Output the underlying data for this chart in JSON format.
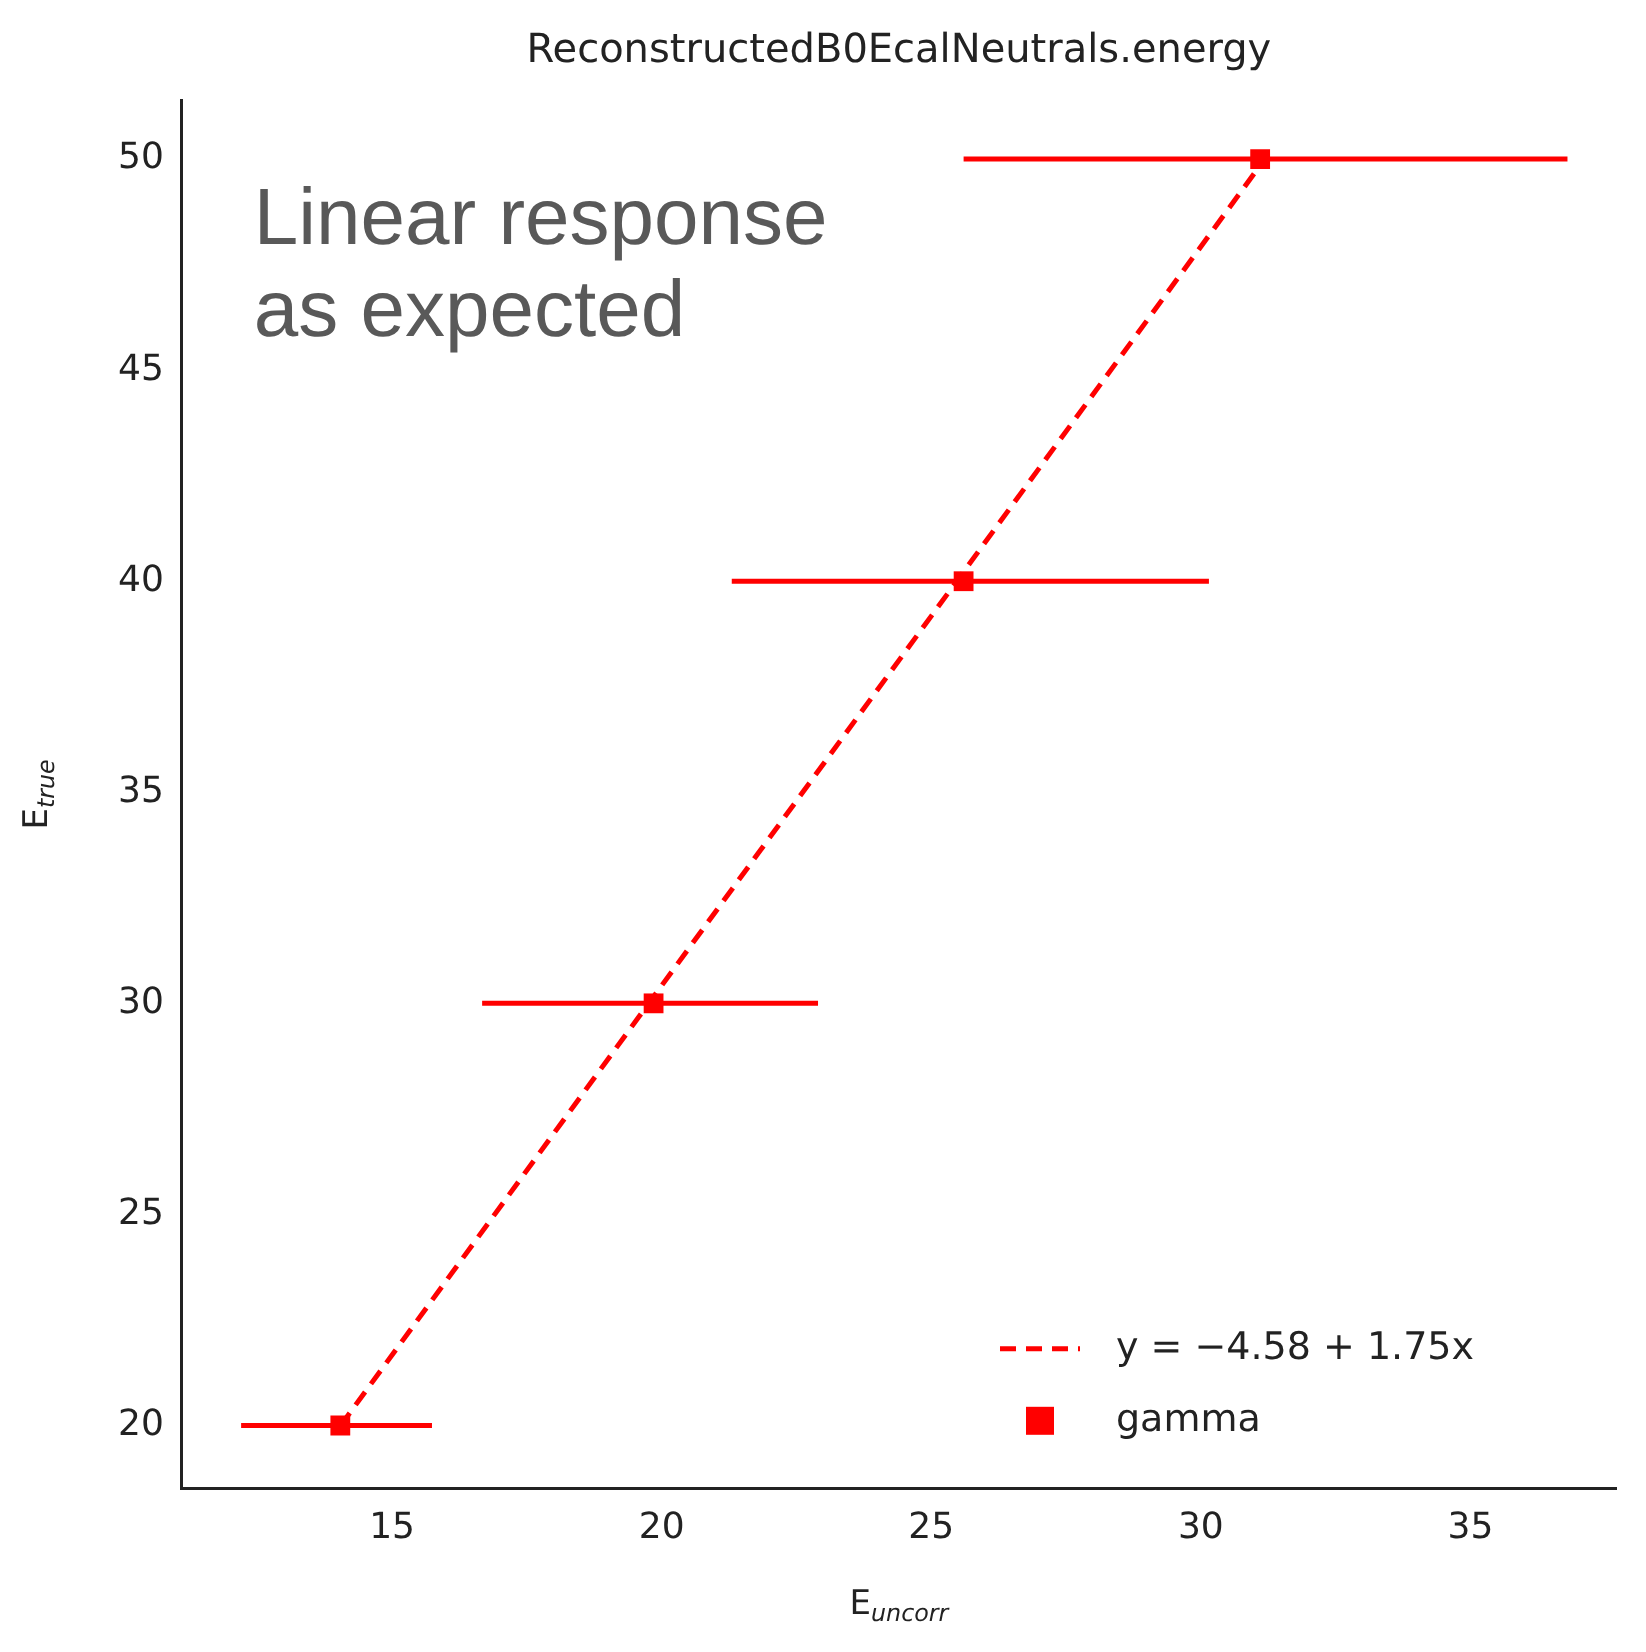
{
  "chart_data": {
    "type": "scatter",
    "title": "ReconstructedB0EcalNeutrals.energy",
    "xlabel": "E$_{uncorr}$",
    "ylabel": "E$_{true}$",
    "xlim": [
      11.1,
      37.7
    ],
    "xticks": [
      15,
      20,
      25,
      30,
      35
    ],
    "ylim": [
      18.5,
      51.4
    ],
    "yticks": [
      20,
      25,
      30,
      35,
      40,
      45,
      50
    ],
    "series": [
      {
        "name": "y = −4.58 + 1.75x",
        "type": "line",
        "color": "#ff0000",
        "line_style": "dashed",
        "marker": "none",
        "x": [
          14.04,
          31.1
        ],
        "values": [
          19.99,
          49.85
        ]
      },
      {
        "name": "gamma",
        "type": "scatter",
        "color": "#ff0000",
        "marker": "square",
        "x": [
          14.04,
          19.85,
          25.6,
          31.1
        ],
        "values": [
          20,
          30,
          40,
          50
        ],
        "xerrors": [
          [
            12.2,
            15.74
          ],
          [
            16.67,
            22.9
          ],
          [
            21.3,
            30.15
          ],
          [
            25.6,
            36.8
          ]
        ]
      }
    ],
    "legend": "bottom right",
    "grid": false,
    "annotations": [
      "Linear response\nas expected"
    ]
  }
}
